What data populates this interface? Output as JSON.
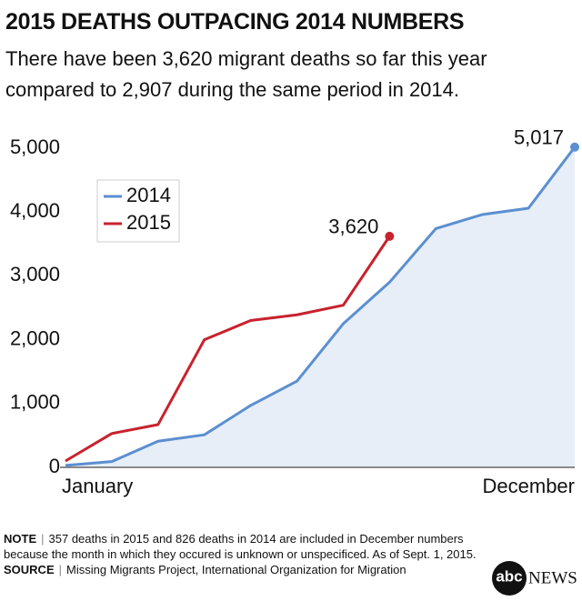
{
  "chart_data": {
    "type": "line",
    "title": "2015 DEATHS OUTPACING 2014 NUMBERS",
    "subtitle": "There have been 3,620 migrant deaths so far this year compared to 2,907 during the same period in 2014.",
    "categories": [
      "January",
      null,
      null,
      null,
      null,
      null,
      null,
      null,
      null,
      null,
      null,
      "December"
    ],
    "series": [
      {
        "name": "2014",
        "color": "#5b8fd0",
        "area": true,
        "values": [
          30,
          90,
          410,
          510,
          970,
          1350,
          2250,
          2900,
          3740,
          3960,
          4060,
          5017
        ],
        "value_labels": [
          null,
          null,
          null,
          null,
          null,
          null,
          null,
          null,
          null,
          null,
          null,
          "5,017"
        ]
      },
      {
        "name": "2015",
        "color": "#c8222d",
        "area": false,
        "values": [
          100,
          530,
          670,
          2000,
          2300,
          2390,
          2540,
          3620,
          null,
          null,
          null,
          null
        ],
        "value_labels": [
          null,
          null,
          null,
          null,
          null,
          null,
          null,
          "3,620",
          null,
          null,
          null,
          null
        ]
      }
    ],
    "ylim": [
      0,
      5000
    ],
    "yticks": [
      0,
      {
        "value": 1000,
        "label": "1,000"
      },
      {
        "value": 2000,
        "label": "2,000"
      },
      {
        "value": 3000,
        "label": "3,000"
      },
      {
        "value": 4000,
        "label": "4,000"
      },
      {
        "value": 5000,
        "label": "5,000"
      }
    ],
    "grid": false,
    "legend": "upper left"
  },
  "footer": {
    "note_label": "NOTE",
    "note": "357 deaths in 2015 and 826 deaths in 2014 are included in December numbers because the month in which they occured is unknown or unspecificed. As of Sept. 1, 2015.",
    "source_label": "SOURCE",
    "source": "Missing Migrants Project, International Organization for Migration"
  },
  "logo": {
    "abc": "abc",
    "news": "NEWS"
  }
}
